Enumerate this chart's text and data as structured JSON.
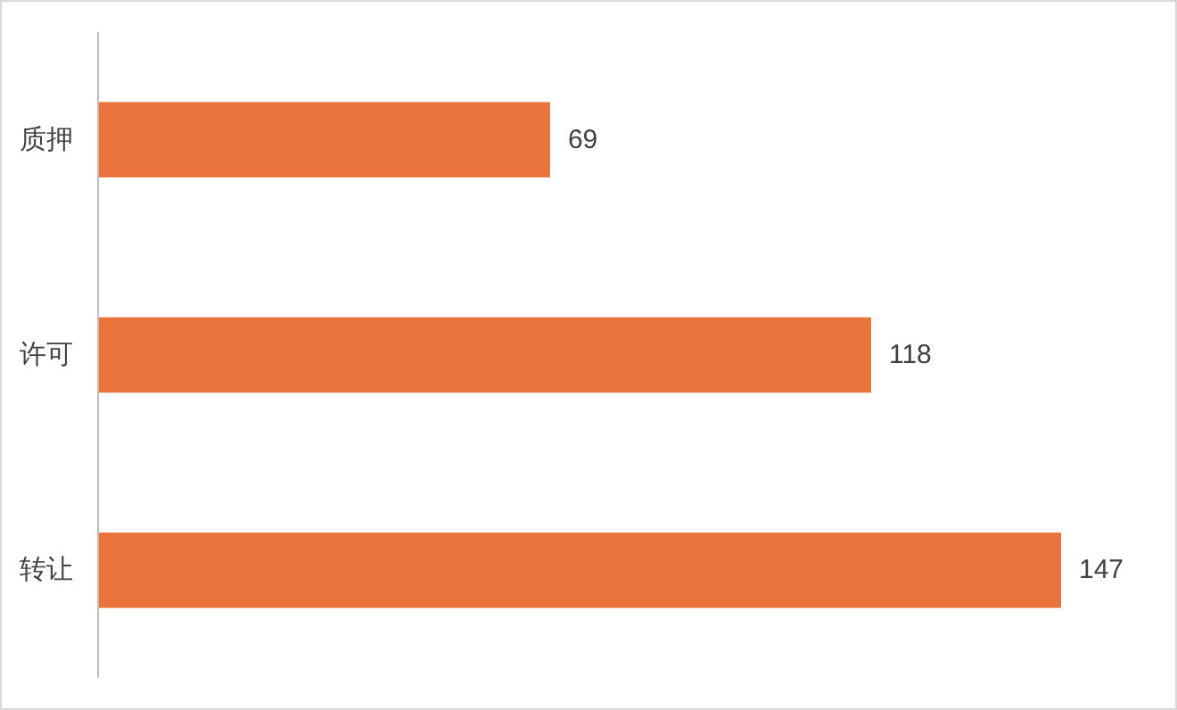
{
  "chart_data": {
    "type": "bar",
    "orientation": "horizontal",
    "categories": [
      "质押",
      "许可",
      "转让"
    ],
    "values": [
      69,
      118,
      147
    ],
    "color": "#e8743b",
    "data_labels": true
  }
}
